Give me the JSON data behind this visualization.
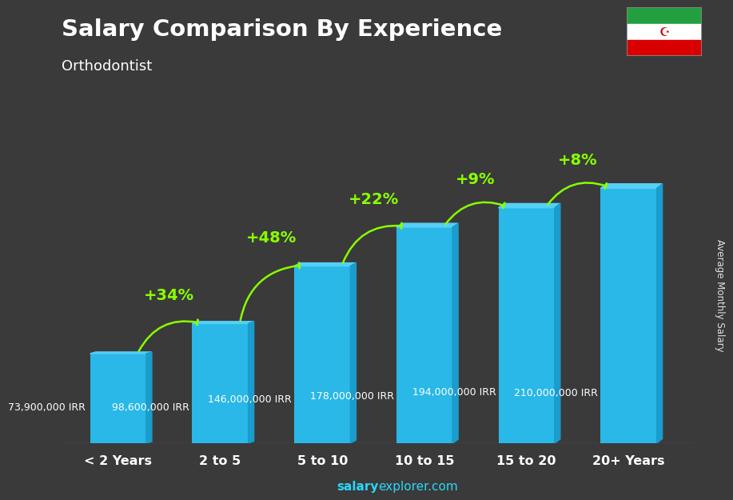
{
  "categories": [
    "< 2 Years",
    "2 to 5",
    "5 to 10",
    "10 to 15",
    "15 to 20",
    "20+ Years"
  ],
  "values": [
    73900000,
    98600000,
    146000000,
    178000000,
    194000000,
    210000000
  ],
  "value_labels": [
    "73,900,000 IRR",
    "98,600,000 IRR",
    "146,000,000 IRR",
    "178,000,000 IRR",
    "194,000,000 IRR",
    "210,000,000 IRR"
  ],
  "pct_labels": [
    "+34%",
    "+48%",
    "+22%",
    "+9%",
    "+8%"
  ],
  "bar_color": "#29b8e8",
  "bar_color_light": "#55d0f5",
  "bar_color_dark": "#1a9ccc",
  "title": "Salary Comparison By Experience",
  "subtitle": "Orthodontist",
  "ylabel": "Average Monthly Salary",
  "footer_bold": "salary",
  "footer_regular": "explorer.com",
  "bg_color": "#3a3a3a",
  "title_color": "#ffffff",
  "subtitle_color": "#ffffff",
  "val_label_color": "#ffffff",
  "pct_color": "#88ff00",
  "arrow_color": "#88ff00",
  "bar_width": 0.55,
  "ylim_max": 245000000,
  "flag_green": "#239f40",
  "flag_white": "#ffffff",
  "flag_red": "#da0000"
}
